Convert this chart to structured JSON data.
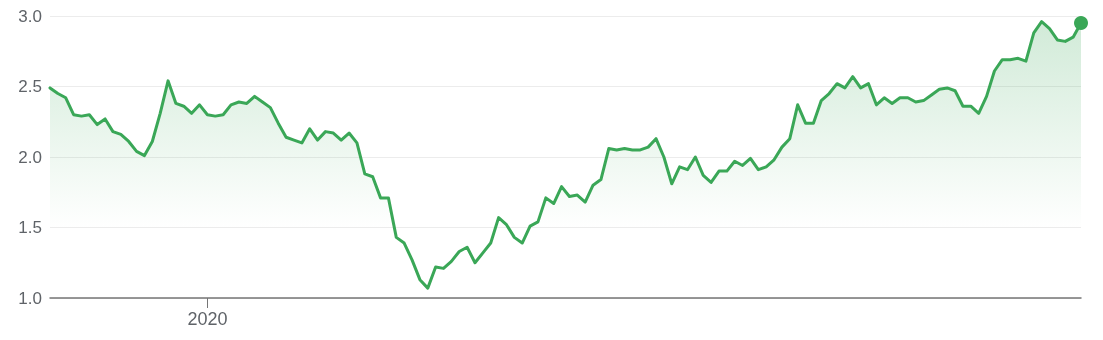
{
  "chart_data": {
    "type": "area",
    "categories": [
      null,
      null,
      null,
      null,
      null,
      null,
      null,
      null,
      null,
      null,
      null,
      null,
      null,
      null,
      null,
      null,
      null,
      null,
      null,
      null,
      "2020",
      null,
      null,
      null,
      null,
      null,
      null,
      null,
      null,
      null,
      null,
      null,
      null,
      null,
      null,
      null,
      null,
      null,
      null,
      null,
      null,
      null,
      null,
      null,
      null,
      null,
      null,
      null,
      null,
      null,
      null,
      null,
      null,
      null,
      null,
      null,
      null,
      null,
      null,
      null,
      null,
      null,
      null,
      null,
      null,
      null,
      null,
      null,
      null,
      null,
      null,
      null,
      null,
      null,
      null,
      null,
      null,
      null,
      null,
      null,
      null,
      null,
      null,
      null,
      null,
      null,
      null,
      null,
      null,
      null,
      null,
      null,
      null,
      null,
      null,
      null,
      null,
      null,
      null,
      null,
      null,
      null,
      null,
      null,
      null,
      null,
      null,
      null,
      null,
      null,
      null,
      null,
      null,
      null,
      null,
      null,
      null,
      null,
      null,
      null,
      null,
      null,
      null,
      null,
      null,
      null,
      null,
      null,
      null,
      null,
      null,
      null
    ],
    "series": [
      {
        "color": "#3aa757",
        "values": [
          2.49,
          2.45,
          2.42,
          2.3,
          2.29,
          2.3,
          2.23,
          2.27,
          2.18,
          2.16,
          2.11,
          2.04,
          2.01,
          2.11,
          2.31,
          2.54,
          2.38,
          2.36,
          2.31,
          2.37,
          2.3,
          2.29,
          2.3,
          2.37,
          2.39,
          2.38,
          2.43,
          2.39,
          2.35,
          2.24,
          2.14,
          2.12,
          2.1,
          2.2,
          2.12,
          2.18,
          2.17,
          2.12,
          2.17,
          2.1,
          1.88,
          1.86,
          1.71,
          1.71,
          1.43,
          1.39,
          1.27,
          1.13,
          1.07,
          1.22,
          1.21,
          1.26,
          1.33,
          1.36,
          1.25,
          1.32,
          1.39,
          1.57,
          1.52,
          1.43,
          1.39,
          1.51,
          1.54,
          1.71,
          1.67,
          1.79,
          1.72,
          1.73,
          1.68,
          1.8,
          1.84,
          2.06,
          2.05,
          2.06,
          2.05,
          2.05,
          2.07,
          2.13,
          2.0,
          1.81,
          1.93,
          1.91,
          2.0,
          1.87,
          1.82,
          1.9,
          1.9,
          1.97,
          1.94,
          1.99,
          1.91,
          1.93,
          1.98,
          2.07,
          2.13,
          2.37,
          2.24,
          2.24,
          2.4,
          2.45,
          2.52,
          2.49,
          2.57,
          2.49,
          2.52,
          2.37,
          2.42,
          2.38,
          2.42,
          2.42,
          2.39,
          2.4,
          2.44,
          2.48,
          2.49,
          2.47,
          2.36,
          2.36,
          2.31,
          2.43,
          2.61,
          2.69,
          2.69,
          2.7,
          2.68,
          2.88,
          2.96,
          2.91,
          2.83,
          2.82,
          2.85,
          2.95
        ]
      }
    ],
    "ylim": [
      1,
      3
    ],
    "yticks": [
      {
        "value": 1,
        "label": "1.0"
      },
      {
        "value": 1.5,
        "label": "1.5"
      },
      {
        "value": 2,
        "label": "2.0"
      },
      {
        "value": 2.5,
        "label": "2.5"
      },
      {
        "value": 3,
        "label": "3.0"
      }
    ],
    "grid": "y",
    "marker": "none",
    "line_style": "solid"
  }
}
